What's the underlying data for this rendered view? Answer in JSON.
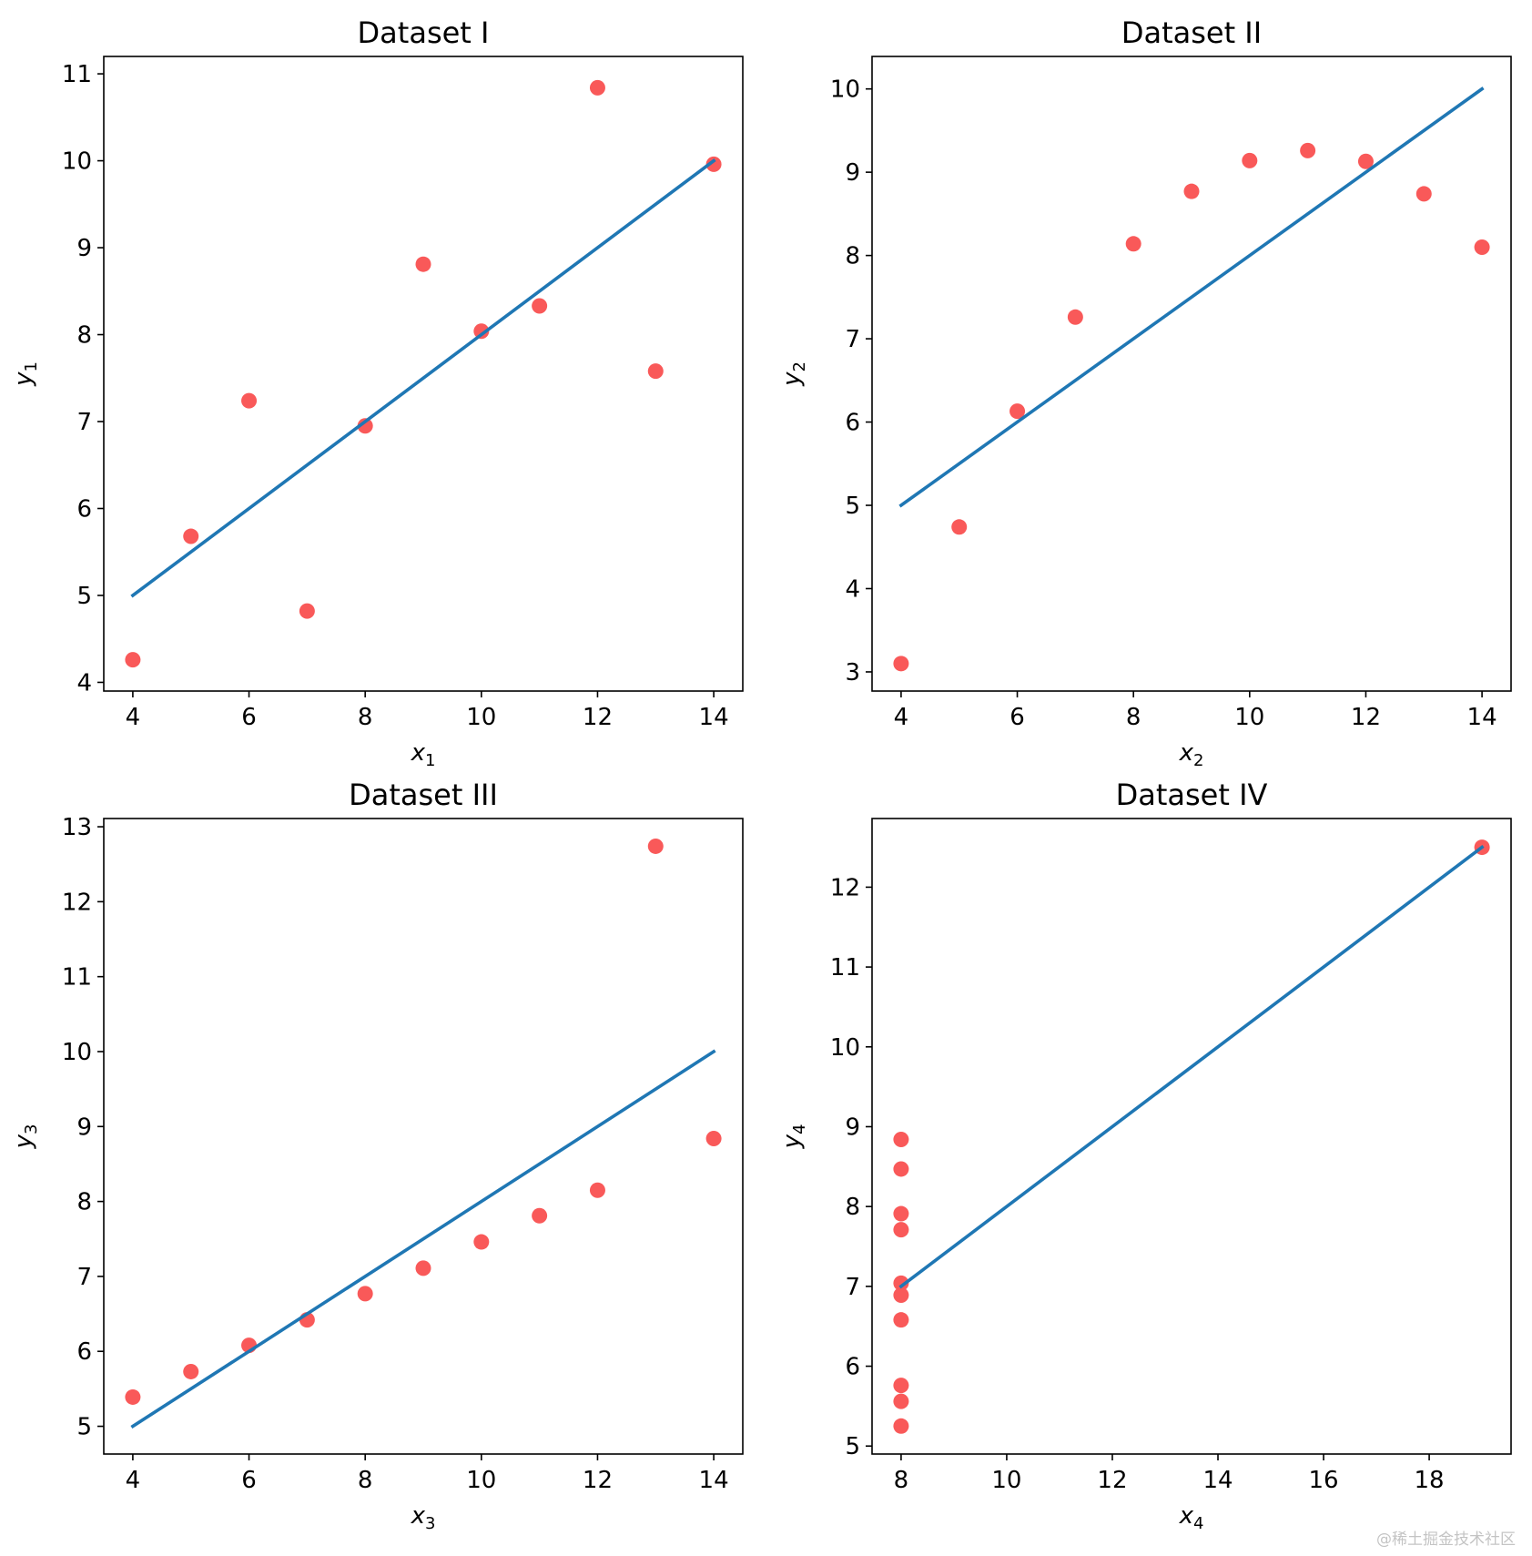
{
  "watermark": "@稀土掘金技术社区",
  "colors": {
    "points": "#f95959",
    "fit_line": "#1f77b4",
    "axes": "#000000"
  },
  "chart_data": [
    {
      "type": "scatter",
      "title": "Dataset I",
      "xlabel": {
        "base": "x",
        "sub": "1"
      },
      "ylabel": {
        "base": "y",
        "sub": "1"
      },
      "xlim": [
        3.5,
        14.5
      ],
      "ylim": [
        3.9,
        11.2
      ],
      "xticks": [
        4,
        6,
        8,
        10,
        12,
        14
      ],
      "yticks": [
        4,
        5,
        6,
        7,
        8,
        9,
        10,
        11
      ],
      "x": [
        10,
        8,
        13,
        9,
        11,
        14,
        6,
        4,
        12,
        7,
        5
      ],
      "y": [
        8.04,
        6.95,
        7.58,
        8.81,
        8.33,
        9.96,
        7.24,
        4.26,
        10.84,
        4.82,
        5.68
      ],
      "fit_line": {
        "x": [
          4,
          14
        ],
        "y": [
          5,
          10
        ]
      },
      "grid": false
    },
    {
      "type": "scatter",
      "title": "Dataset II",
      "xlabel": {
        "base": "x",
        "sub": "2"
      },
      "ylabel": {
        "base": "y",
        "sub": "2"
      },
      "xlim": [
        3.5,
        14.5
      ],
      "ylim": [
        2.77,
        10.39
      ],
      "xticks": [
        4,
        6,
        8,
        10,
        12,
        14
      ],
      "yticks": [
        3,
        4,
        5,
        6,
        7,
        8,
        9,
        10
      ],
      "x": [
        10,
        8,
        13,
        9,
        11,
        14,
        6,
        4,
        12,
        7,
        5
      ],
      "y": [
        9.14,
        8.14,
        8.74,
        8.77,
        9.26,
        8.1,
        6.13,
        3.1,
        9.13,
        7.26,
        4.74
      ],
      "fit_line": {
        "x": [
          4,
          14
        ],
        "y": [
          5,
          10
        ]
      },
      "grid": false
    },
    {
      "type": "scatter",
      "title": "Dataset III",
      "xlabel": {
        "base": "x",
        "sub": "3"
      },
      "ylabel": {
        "base": "y",
        "sub": "3"
      },
      "xlim": [
        3.5,
        14.5
      ],
      "ylim": [
        4.63,
        13.11
      ],
      "xticks": [
        4,
        6,
        8,
        10,
        12,
        14
      ],
      "yticks": [
        5,
        6,
        7,
        8,
        9,
        10,
        11,
        12,
        13
      ],
      "x": [
        10,
        8,
        13,
        9,
        11,
        14,
        6,
        4,
        12,
        7,
        5
      ],
      "y": [
        7.46,
        6.77,
        12.74,
        7.11,
        7.81,
        8.84,
        6.08,
        5.39,
        8.15,
        6.42,
        5.73
      ],
      "fit_line": {
        "x": [
          4,
          14
        ],
        "y": [
          5,
          10
        ]
      },
      "grid": false
    },
    {
      "type": "scatter",
      "title": "Dataset IV",
      "xlabel": {
        "base": "x",
        "sub": "4"
      },
      "ylabel": {
        "base": "y",
        "sub": "4"
      },
      "xlim": [
        7.45,
        19.55
      ],
      "ylim": [
        4.9,
        12.86
      ],
      "xticks": [
        8,
        10,
        12,
        14,
        16,
        18
      ],
      "yticks": [
        5,
        6,
        7,
        8,
        9,
        10,
        11,
        12
      ],
      "x": [
        8,
        8,
        8,
        8,
        8,
        8,
        8,
        19,
        8,
        8,
        8
      ],
      "y": [
        6.58,
        5.76,
        7.71,
        8.84,
        8.47,
        7.04,
        5.25,
        12.5,
        5.56,
        7.91,
        6.89
      ],
      "fit_line": {
        "x": [
          8,
          19
        ],
        "y": [
          7,
          12.5
        ]
      },
      "grid": false
    }
  ]
}
